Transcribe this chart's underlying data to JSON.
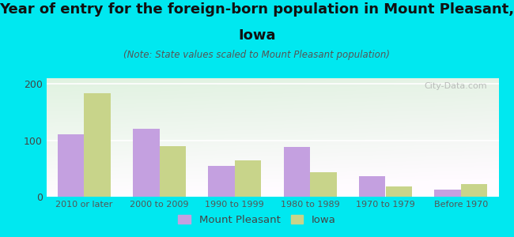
{
  "title_line1": "Year of entry for the foreign-born population in Mount Pleasant,",
  "title_line2": "Iowa",
  "subtitle": "(Note: State values scaled to Mount Pleasant population)",
  "categories": [
    "2010 or later",
    "2000 to 2009",
    "1990 to 1999",
    "1980 to 1989",
    "1970 to 1979",
    "Before 1970"
  ],
  "mount_pleasant": [
    110,
    120,
    55,
    88,
    37,
    13
  ],
  "iowa": [
    183,
    90,
    65,
    43,
    18,
    22
  ],
  "mp_color": "#c4a0e0",
  "iowa_color": "#c8d48a",
  "background_color": "#00e8f0",
  "ylabel_values": [
    0,
    100,
    200
  ],
  "ylim": [
    0,
    210
  ],
  "title_fontsize": 13,
  "subtitle_fontsize": 8.5,
  "legend_label_mp": "Mount Pleasant",
  "legend_label_iowa": "Iowa",
  "watermark": "City-Data.com",
  "bar_width": 0.35
}
